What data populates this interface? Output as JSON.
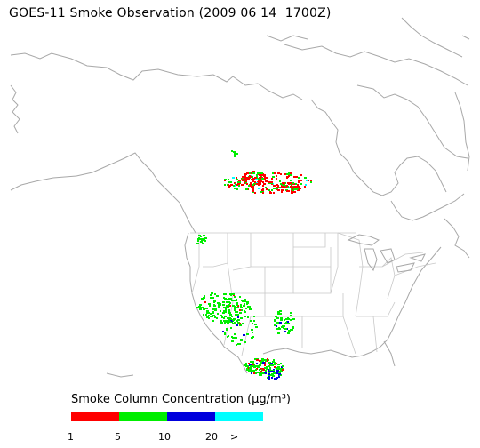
{
  "title": "GOES-11 Smoke Observation (2009 06 14  1700Z)",
  "legend": {
    "title": "Smoke Column Concentration (μg/m³)",
    "bins": [
      {
        "label": "1",
        "color": "#ff0000"
      },
      {
        "label": "5",
        "color": "#00ee00"
      },
      {
        "label": "10",
        "color": "#0000dd"
      },
      {
        "label": "20",
        "color": "#00ffff"
      }
    ],
    "overflow_label": ">"
  },
  "map": {
    "coastline_color": "#a8a8a8",
    "state_border_color": "#c8c8c8",
    "background": "#ffffff"
  }
}
